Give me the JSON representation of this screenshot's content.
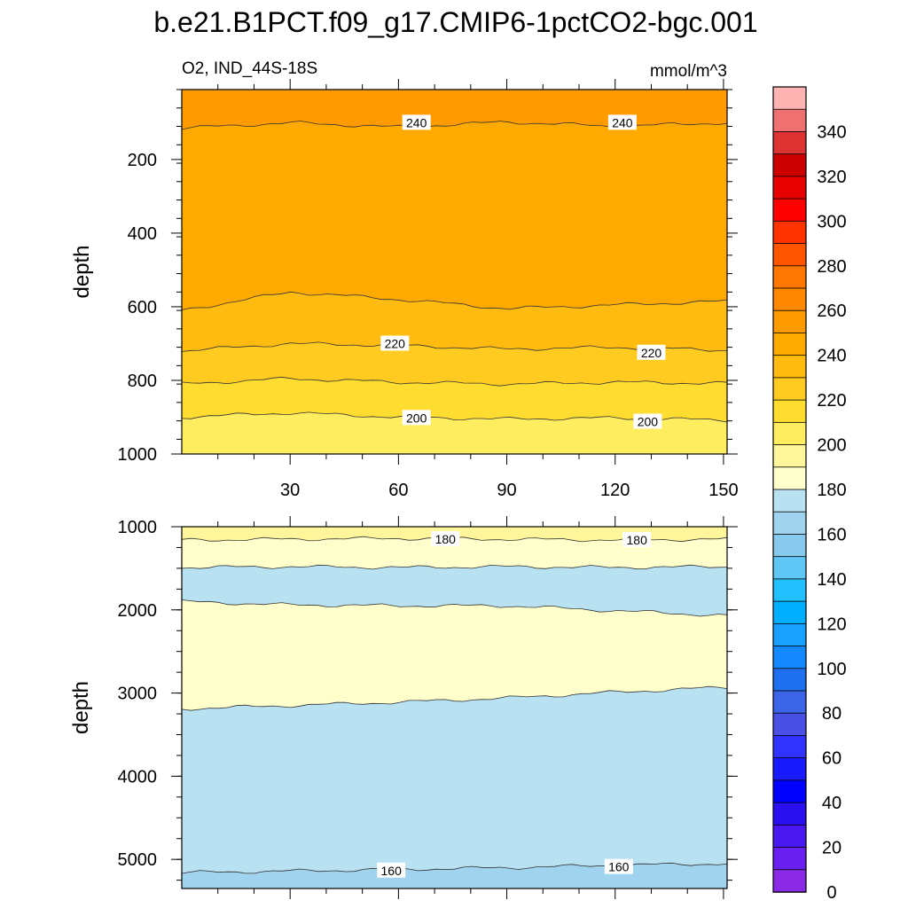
{
  "title": "b.e21.B1PCT.f09_g17.CMIP6-1pctCO2-bgc.001",
  "chart_data": [
    {
      "type": "contour",
      "panel": "upper",
      "subtitle_left": "O2, IND_44S-18S",
      "subtitle_right": "mmol/m^3",
      "ylabel": "depth",
      "xlabel": "",
      "xlim": [
        0,
        151
      ],
      "ylim": [
        1000,
        10
      ],
      "xticks": [
        "30",
        "60",
        "90",
        "120",
        "150"
      ],
      "xtick_values": [
        30,
        60,
        90,
        120,
        150
      ],
      "yticks": [
        "200",
        "400",
        "600",
        "800",
        "1000"
      ],
      "ytick_values": [
        200,
        400,
        600,
        800,
        1000
      ],
      "bands": [
        {
          "value": 250,
          "color": "#ff9a00",
          "depth_start": [
            10,
            10,
            10,
            10,
            10,
            10
          ],
          "depth_end": [
            115,
            100,
            112,
            98,
            110,
            100
          ]
        },
        {
          "value": 240,
          "color": "#ffaa00",
          "depth_start": [
            115,
            100,
            112,
            98,
            110,
            100
          ],
          "depth_end": [
            610,
            560,
            580,
            605,
            595,
            585
          ]
        },
        {
          "value": 230,
          "color": "#ffbb10",
          "depth_start": [
            610,
            560,
            580,
            605,
            595,
            585
          ],
          "depth_end": [
            720,
            700,
            705,
            715,
            710,
            718
          ]
        },
        {
          "value": 220,
          "color": "#ffcb20",
          "depth_start": [
            720,
            700,
            705,
            715,
            710,
            718
          ],
          "depth_end": [
            810,
            795,
            805,
            810,
            805,
            808
          ]
        },
        {
          "value": 210,
          "color": "#ffdc30",
          "depth_start": [
            810,
            795,
            805,
            810,
            805,
            808
          ],
          "depth_end": [
            900,
            888,
            900,
            905,
            902,
            908
          ]
        },
        {
          "value": 200,
          "color": "#ffed60",
          "depth_start": [
            900,
            888,
            900,
            905,
            902,
            908
          ],
          "depth_end": [
            1000,
            1000,
            1000,
            1000,
            1000,
            1000
          ]
        }
      ],
      "band_x": [
        0,
        30,
        60,
        90,
        120,
        151
      ],
      "contour_labels": [
        {
          "text": "240",
          "x": 65,
          "depth": 100
        },
        {
          "text": "240",
          "x": 122,
          "depth": 100
        },
        {
          "text": "220",
          "x": 59,
          "depth": 700
        },
        {
          "text": "220",
          "x": 130,
          "depth": 725
        },
        {
          "text": "200",
          "x": 65,
          "depth": 902
        },
        {
          "text": "200",
          "x": 129,
          "depth": 912
        }
      ]
    },
    {
      "type": "contour",
      "panel": "lower",
      "ylabel": "depth",
      "xlabel": "",
      "xlim": [
        0,
        151
      ],
      "ylim": [
        5350,
        1000
      ],
      "xticks": [
        "",
        "",
        "",
        "",
        ""
      ],
      "xtick_values": [
        30,
        60,
        90,
        120,
        150
      ],
      "yticks": [
        "1000",
        "2000",
        "3000",
        "4000",
        "5000"
      ],
      "ytick_values": [
        1000,
        2000,
        3000,
        4000,
        5000
      ],
      "bands": [
        {
          "value": 190,
          "color": "#fff59a",
          "depth_start": [
            1000,
            1000,
            1000,
            1000,
            1000,
            1000
          ],
          "depth_end": [
            1160,
            1150,
            1140,
            1150,
            1160,
            1150
          ]
        },
        {
          "value": 180,
          "color": "#ffffcc",
          "depth_start": [
            1160,
            1150,
            1140,
            1150,
            1160,
            1150
          ],
          "depth_end": [
            1490,
            1480,
            1490,
            1480,
            1490,
            1480
          ]
        },
        {
          "value": 170,
          "color": "#b8e1f2",
          "depth_start": [
            1490,
            1480,
            1490,
            1480,
            1490,
            1480
          ],
          "depth_end": [
            1900,
            1940,
            1950,
            1950,
            2010,
            2070
          ]
        },
        {
          "value": 180,
          "color": "#ffffcc",
          "depth_start": [
            1900,
            1940,
            1950,
            1950,
            2010,
            2070
          ],
          "depth_end": [
            3190,
            3150,
            3110,
            3060,
            2990,
            2930
          ]
        },
        {
          "value": 170,
          "color": "#b8e1f2",
          "depth_start": [
            3190,
            3150,
            3110,
            3060,
            2990,
            2930
          ],
          "depth_end": [
            5160,
            5140,
            5120,
            5100,
            5070,
            5050
          ]
        },
        {
          "value": 160,
          "color": "#a0d4ee",
          "depth_start": [
            5160,
            5140,
            5120,
            5100,
            5070,
            5050
          ],
          "depth_end": [
            5350,
            5350,
            5350,
            5350,
            5350,
            5350
          ]
        }
      ],
      "band_x": [
        0,
        30,
        60,
        90,
        120,
        151
      ],
      "contour_labels": [
        {
          "text": "180",
          "x": 73,
          "depth": 1150
        },
        {
          "text": "180",
          "x": 126,
          "depth": 1160
        },
        {
          "text": "160",
          "x": 58,
          "depth": 5135
        },
        {
          "text": "160",
          "x": 121,
          "depth": 5090
        }
      ]
    }
  ],
  "colorbar": {
    "labels": [
      "340",
      "320",
      "300",
      "280",
      "260",
      "240",
      "220",
      "200",
      "180",
      "160",
      "140",
      "120",
      "100",
      "80",
      "60",
      "40",
      "20",
      "0"
    ],
    "colors_top_to_bottom": [
      "#ffb4b4",
      "#ee7070",
      "#dd3333",
      "#cc0000",
      "#e60000",
      "#ff0000",
      "#ff3300",
      "#ff5500",
      "#ff7700",
      "#ff8800",
      "#ff9a00",
      "#ffaa00",
      "#ffbb10",
      "#ffcb20",
      "#ffdc30",
      "#ffed60",
      "#fff59a",
      "#ffffcc",
      "#b8e1f2",
      "#a0d4ee",
      "#88caee",
      "#5fc6f5",
      "#22c0ff",
      "#00b0ff",
      "#1aa0ff",
      "#1488ff",
      "#1e70f0",
      "#3c64e6",
      "#4a50e6",
      "#3232ff",
      "#1a1aff",
      "#0000ff",
      "#2a10f0",
      "#4a18f0",
      "#6a20f0",
      "#8a2ae6"
    ]
  }
}
